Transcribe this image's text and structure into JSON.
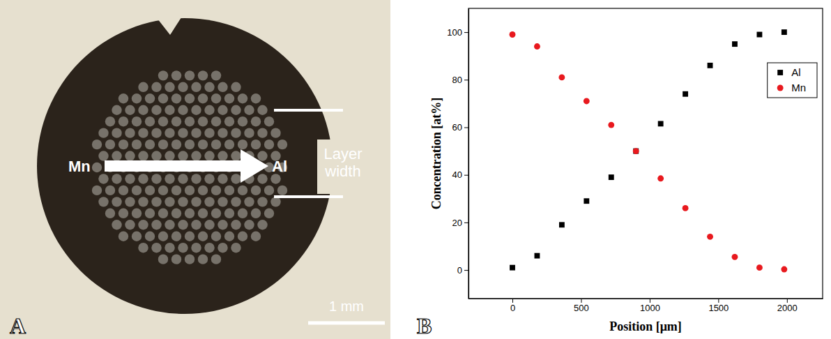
{
  "figure": {
    "panel_labels": [
      "A",
      "B"
    ]
  },
  "photo": {
    "labels": {
      "start": "Mn",
      "end": "Al",
      "width": "Layer width",
      "scale_bar": "1 mm"
    }
  },
  "chart_data": {
    "type": "scatter",
    "x_label": "Position [μm]",
    "y_label": "Concentration [at%]",
    "x": [
      0,
      180,
      360,
      540,
      720,
      900,
      1080,
      1260,
      1440,
      1620,
      1800,
      1980
    ],
    "series": [
      {
        "name": "Al",
        "color": "#000000",
        "marker": "square",
        "values": [
          1,
          6,
          19,
          29,
          39,
          50,
          61.5,
          74,
          86,
          95,
          99,
          100
        ]
      },
      {
        "name": "Mn",
        "color": "#e8191e",
        "marker": "circle",
        "values": [
          99,
          94,
          81,
          71,
          61,
          50,
          38.5,
          26,
          14,
          5.5,
          1,
          0.3
        ]
      }
    ],
    "xlim": [
      -320,
      2260
    ],
    "ylim": [
      -12,
      110
    ],
    "xticks": [
      0,
      500,
      1000,
      1500,
      2000
    ],
    "yticks": [
      0,
      20,
      40,
      60,
      80,
      100
    ],
    "legend": "right",
    "grid": false
  }
}
